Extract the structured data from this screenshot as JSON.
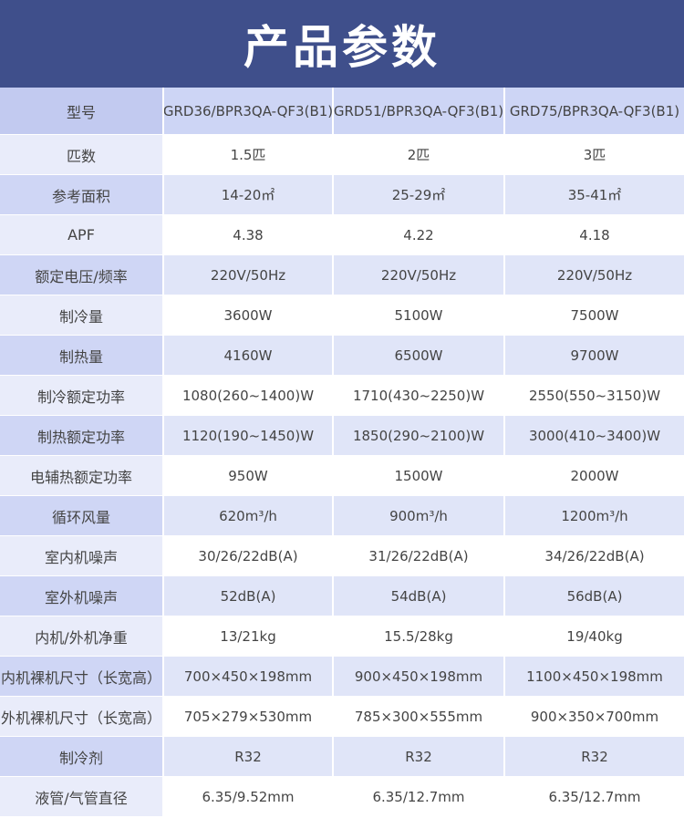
{
  "title": "产品参数",
  "header": {
    "label": "型号",
    "models": [
      "GRD36/BPR3QA-QF3(B1)",
      "GRD51/BPR3QA-QF3(B1)",
      "GRD75/BPR3QA-QF3(B1)"
    ]
  },
  "rows": [
    {
      "label": "匹数",
      "values": [
        "1.5匹",
        "2匹",
        "3匹"
      ]
    },
    {
      "label": "参考面积",
      "values": [
        "14-20㎡",
        "25-29㎡",
        "35-41㎡"
      ]
    },
    {
      "label": "APF",
      "values": [
        "4.38",
        "4.22",
        "4.18"
      ]
    },
    {
      "label": "额定电压/频率",
      "values": [
        "220V/50Hz",
        "220V/50Hz",
        "220V/50Hz"
      ]
    },
    {
      "label": "制冷量",
      "values": [
        "3600W",
        "5100W",
        "7500W"
      ]
    },
    {
      "label": "制热量",
      "values": [
        "4160W",
        "6500W",
        "9700W"
      ]
    },
    {
      "label": "制冷额定功率",
      "values": [
        "1080(260~1400)W",
        "1710(430~2250)W",
        "2550(550~3150)W"
      ]
    },
    {
      "label": "制热额定功率",
      "values": [
        "1120(190~1450)W",
        "1850(290~2100)W",
        "3000(410~3400)W"
      ]
    },
    {
      "label": "电辅热额定功率",
      "values": [
        "950W",
        "1500W",
        "2000W"
      ]
    },
    {
      "label": "循环风量",
      "values": [
        "620m³/h",
        "900m³/h",
        "1200m³/h"
      ]
    },
    {
      "label": "室内机噪声",
      "values": [
        "30/26/22dB(A)",
        "31/26/22dB(A)",
        "34/26/22dB(A)"
      ]
    },
    {
      "label": "室外机噪声",
      "values": [
        "52dB(A)",
        "54dB(A)",
        "56dB(A)"
      ]
    },
    {
      "label": "内机/外机净重",
      "values": [
        "13/21kg",
        "15.5/28kg",
        "19/40kg"
      ]
    },
    {
      "label": "内机裸机尺寸（长宽高）",
      "values": [
        "700×450×198mm",
        "900×450×198mm",
        "1100×450×198mm"
      ]
    },
    {
      "label": "外机裸机尺寸（长宽高）",
      "values": [
        "705×279×530mm",
        "785×300×555mm",
        "900×350×700mm"
      ]
    },
    {
      "label": "制冷剂",
      "values": [
        "R32",
        "R32",
        "R32"
      ]
    },
    {
      "label": "液管/气管直径",
      "values": [
        "6.35/9.52mm",
        "6.35/12.7mm",
        "6.35/12.7mm"
      ]
    }
  ]
}
